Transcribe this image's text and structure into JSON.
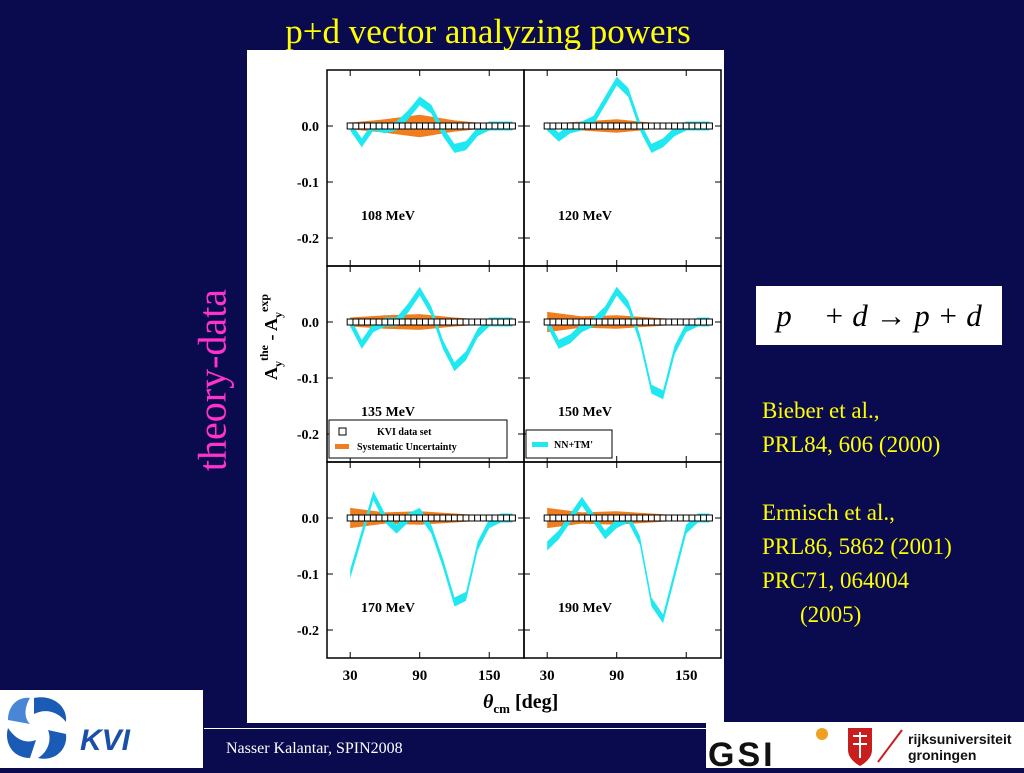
{
  "slide": {
    "title": "p+d vector analyzing powers",
    "side_label": "theory-data",
    "formula": "p⃗ + d → p + d",
    "references": [
      {
        "text": "Bieber et al.,"
      },
      {
        "text": "PRL84, 606 (2000)"
      },
      {
        "text": "Ermisch et al.,"
      },
      {
        "text": "PRL86, 5862 (2001)"
      },
      {
        "text": "PRC71, 064004"
      },
      {
        "text": "(2005)"
      }
    ],
    "footer": "Nasser Kalantar, SPIN2008",
    "logos": {
      "kvi": "KVI",
      "gsi": "GSI",
      "rug_line1": "rijksuniversiteit",
      "rug_line2": "groningen"
    }
  },
  "chart_data": {
    "type": "line",
    "ylabel_main": "A",
    "ylabel_sup1": "the",
    "ylabel_sub1": "y",
    "ylabel_mid": " - A",
    "ylabel_sup2": "exp",
    "ylabel_sub2": "y",
    "xlabel_theta": "θ",
    "xlabel_sub": "cm",
    "xlabel_unit": "[deg]",
    "yticks": [
      "0.0",
      "-0.1",
      "-0.2"
    ],
    "ytick_values": [
      0.0,
      -0.1,
      -0.2
    ],
    "xticks": [
      "30",
      "90",
      "150"
    ],
    "xtick_values": [
      30,
      90,
      150
    ],
    "xlim": [
      10,
      180
    ],
    "ylim": [
      -0.25,
      0.1
    ],
    "legend": {
      "data_set": "KVI data set",
      "systematic": "Systematic Uncertainty",
      "theory": "NN+TM'"
    },
    "colors": {
      "data": "#000000",
      "systematic": "#f07d1e",
      "theory": "#20e8f0"
    },
    "panels": [
      {
        "label": "108 MeV",
        "theory_x": [
          30,
          40,
          50,
          60,
          70,
          80,
          90,
          100,
          110,
          120,
          130,
          140,
          150,
          160,
          170
        ],
        "theory_y": [
          0.0,
          -0.03,
          0.0,
          -0.005,
          0.0,
          0.02,
          0.045,
          0.03,
          -0.01,
          -0.04,
          -0.035,
          -0.01,
          0.0,
          0.0,
          0.0
        ],
        "sys_x": [
          30,
          60,
          90,
          120,
          150,
          170
        ],
        "sys_w": [
          0.006,
          0.012,
          0.02,
          0.01,
          0.004,
          0.004
        ],
        "data_x": [
          30,
          35,
          40,
          45,
          50,
          55,
          60,
          65,
          70,
          75,
          80,
          85,
          90,
          95,
          100,
          105,
          110,
          115,
          120,
          125,
          130,
          135,
          140,
          145,
          150,
          155,
          160,
          165,
          170
        ],
        "data_y": [
          0.0,
          0.0,
          0.0,
          0.0,
          0.0,
          0.0,
          0.0,
          0.0,
          0.0,
          0.0,
          0.0,
          0.0,
          0.0,
          0.0,
          0.0,
          0.0,
          0.0,
          0.0,
          0.0,
          0.0,
          0.0,
          0.0,
          0.0,
          0.0,
          0.0,
          0.0,
          0.0,
          0.0,
          0.0
        ]
      },
      {
        "label": "120 MeV",
        "theory_x": [
          30,
          40,
          50,
          60,
          70,
          80,
          90,
          100,
          110,
          120,
          130,
          140,
          150,
          160,
          170
        ],
        "theory_y": [
          0.0,
          -0.02,
          -0.005,
          0.0,
          0.01,
          0.045,
          0.08,
          0.06,
          0.0,
          -0.04,
          -0.03,
          -0.01,
          0.0,
          0.0,
          0.0
        ],
        "sys_x": [
          30,
          60,
          90,
          120,
          150,
          170
        ],
        "sys_w": [
          0.004,
          0.008,
          0.012,
          0.006,
          0.004,
          0.004
        ],
        "data_x": [
          30,
          35,
          40,
          45,
          50,
          55,
          60,
          65,
          70,
          75,
          80,
          85,
          90,
          95,
          100,
          105,
          110,
          115,
          120,
          125,
          130,
          135,
          140,
          145,
          150,
          155,
          160,
          165,
          170
        ],
        "data_y": [
          0.0,
          0.0,
          0.0,
          0.0,
          0.0,
          0.0,
          0.0,
          0.0,
          0.0,
          0.0,
          0.0,
          0.0,
          0.0,
          0.0,
          0.0,
          0.0,
          0.0,
          0.0,
          0.0,
          0.0,
          0.0,
          0.0,
          0.0,
          0.0,
          0.0,
          0.0,
          0.0,
          0.0,
          0.0
        ]
      },
      {
        "label": "135 MeV",
        "theory_x": [
          30,
          40,
          50,
          60,
          70,
          80,
          90,
          100,
          110,
          120,
          130,
          140,
          150,
          160,
          170
        ],
        "theory_y": [
          0.0,
          -0.04,
          -0.01,
          0.0,
          0.0,
          0.025,
          0.055,
          0.02,
          -0.04,
          -0.08,
          -0.06,
          -0.02,
          0.0,
          0.0,
          0.0
        ],
        "sys_x": [
          30,
          60,
          90,
          120,
          150,
          170
        ],
        "sys_w": [
          0.008,
          0.012,
          0.014,
          0.008,
          0.004,
          0.004
        ],
        "data_x": [
          30,
          35,
          40,
          45,
          50,
          55,
          60,
          65,
          70,
          75,
          80,
          85,
          90,
          95,
          100,
          105,
          110,
          115,
          120,
          125,
          130,
          135,
          140,
          145,
          150,
          155,
          160,
          165,
          170
        ],
        "data_y": [
          0.0,
          0.0,
          0.0,
          0.0,
          0.0,
          0.0,
          0.0,
          0.0,
          0.0,
          0.0,
          0.0,
          0.0,
          0.0,
          0.0,
          0.0,
          0.0,
          0.0,
          0.0,
          0.0,
          0.0,
          0.0,
          0.0,
          0.0,
          0.0,
          0.0,
          0.0,
          0.0,
          0.0,
          0.0
        ]
      },
      {
        "label": "150 MeV",
        "theory_x": [
          30,
          40,
          50,
          60,
          70,
          80,
          90,
          100,
          110,
          120,
          130,
          140,
          150,
          160,
          170
        ],
        "theory_y": [
          0.0,
          -0.04,
          -0.03,
          -0.01,
          0.0,
          0.02,
          0.055,
          0.03,
          -0.03,
          -0.12,
          -0.13,
          -0.05,
          -0.01,
          0.0,
          0.0
        ],
        "sys_x": [
          30,
          60,
          90,
          120,
          150,
          170
        ],
        "sys_w": [
          0.018,
          0.01,
          0.012,
          0.008,
          0.004,
          0.004
        ],
        "data_x": [
          30,
          35,
          40,
          45,
          50,
          55,
          60,
          65,
          70,
          75,
          80,
          85,
          90,
          95,
          100,
          105,
          110,
          115,
          120,
          125,
          130,
          135,
          140,
          145,
          150,
          155,
          160,
          165,
          170
        ],
        "data_y": [
          0.0,
          0.0,
          0.0,
          0.0,
          0.0,
          0.0,
          0.0,
          0.0,
          0.0,
          0.0,
          0.0,
          0.0,
          0.0,
          0.0,
          0.0,
          0.0,
          0.0,
          0.0,
          0.0,
          0.0,
          0.0,
          0.0,
          0.0,
          0.0,
          0.0,
          0.0,
          0.0,
          0.0,
          0.0
        ]
      },
      {
        "label": "170 MeV",
        "theory_x": [
          30,
          40,
          50,
          60,
          70,
          80,
          90,
          100,
          110,
          120,
          130,
          140,
          150,
          160,
          170
        ],
        "theory_y": [
          -0.1,
          -0.03,
          0.04,
          0.0,
          -0.02,
          0.0,
          0.01,
          -0.02,
          -0.08,
          -0.15,
          -0.14,
          -0.05,
          -0.01,
          0.0,
          0.0
        ],
        "sys_x": [
          30,
          60,
          90,
          120,
          150,
          170
        ],
        "sys_w": [
          0.018,
          0.01,
          0.012,
          0.008,
          0.004,
          0.004
        ],
        "data_x": [
          30,
          35,
          40,
          45,
          50,
          55,
          60,
          65,
          70,
          75,
          80,
          85,
          90,
          95,
          100,
          105,
          110,
          115,
          120,
          125,
          130,
          135,
          140,
          145,
          150,
          155,
          160,
          165,
          170
        ],
        "data_y": [
          0.0,
          0.0,
          0.0,
          0.0,
          0.0,
          0.0,
          0.0,
          0.0,
          0.0,
          0.0,
          0.0,
          0.0,
          0.0,
          0.0,
          0.0,
          0.0,
          0.0,
          0.0,
          0.0,
          0.0,
          0.0,
          0.0,
          0.0,
          0.0,
          0.0,
          0.0,
          0.0,
          0.0,
          0.0
        ]
      },
      {
        "label": "190 MeV",
        "theory_x": [
          30,
          40,
          50,
          60,
          70,
          80,
          90,
          100,
          110,
          120,
          130,
          140,
          150,
          160,
          170
        ],
        "theory_y": [
          -0.05,
          -0.03,
          0.0,
          0.03,
          0.0,
          -0.03,
          -0.01,
          0.0,
          -0.04,
          -0.15,
          -0.18,
          -0.1,
          -0.02,
          0.0,
          0.0
        ],
        "sys_x": [
          30,
          60,
          90,
          120,
          150,
          170
        ],
        "sys_w": [
          0.018,
          0.01,
          0.012,
          0.008,
          0.004,
          0.004
        ],
        "data_x": [
          30,
          35,
          40,
          45,
          50,
          55,
          60,
          65,
          70,
          75,
          80,
          85,
          90,
          95,
          100,
          105,
          110,
          115,
          120,
          125,
          130,
          135,
          140,
          145,
          150,
          155,
          160,
          165,
          170
        ],
        "data_y": [
          0.0,
          0.0,
          0.0,
          0.0,
          0.0,
          0.0,
          0.0,
          0.0,
          0.0,
          0.0,
          0.0,
          0.0,
          0.0,
          0.0,
          0.0,
          0.0,
          0.0,
          0.0,
          0.0,
          0.0,
          0.0,
          0.0,
          0.0,
          0.0,
          0.0,
          0.0,
          0.0,
          0.0,
          0.0
        ]
      }
    ]
  }
}
